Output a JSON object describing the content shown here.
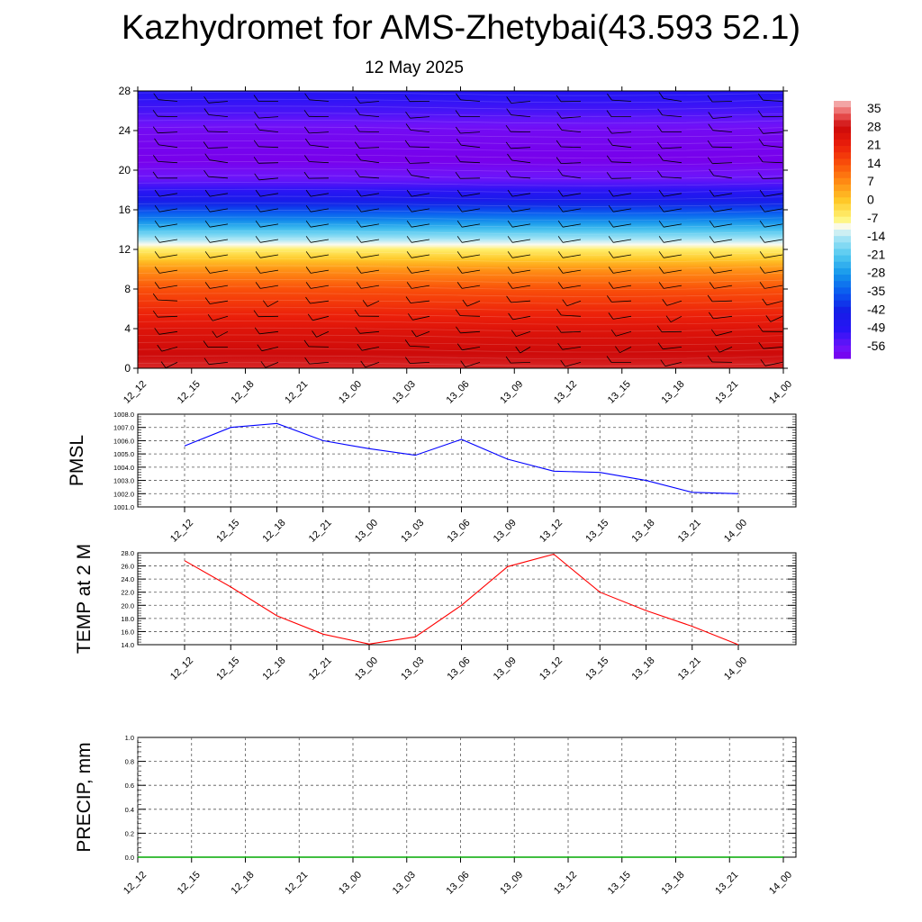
{
  "title": "Kazhydromet for AMS-Zhetybai(43.593 52.1)",
  "subtitle": "12 May 2025",
  "chart_data": [
    {
      "id": "cross_section",
      "type": "heatmap",
      "x_tick_labels": [
        "12_12",
        "12_15",
        "12_18",
        "12_21",
        "13_00",
        "13_03",
        "13_06",
        "13_09",
        "13_12",
        "13_15",
        "13_18",
        "13_21",
        "14_00"
      ],
      "y_ticks": [
        0,
        4,
        8,
        12,
        16,
        20,
        24,
        28
      ],
      "ylim": [
        0,
        28
      ],
      "colorbar": {
        "labels": [
          "35",
          "28",
          "21",
          "14",
          "7",
          "0",
          "-7",
          "-14",
          "-21",
          "-28",
          "-35",
          "-42",
          "-49",
          "-56"
        ],
        "range": [
          -60,
          38
        ]
      },
      "temperature_profile": [
        {
          "y": 0,
          "value": 30
        },
        {
          "y": 4,
          "value": 24
        },
        {
          "y": 8,
          "value": 14
        },
        {
          "y": 10,
          "value": 6
        },
        {
          "y": 12,
          "value": -6
        },
        {
          "y": 13,
          "value": -14
        },
        {
          "y": 15,
          "value": -30
        },
        {
          "y": 17,
          "value": -44
        },
        {
          "y": 19,
          "value": -55
        },
        {
          "y": 21,
          "value": -60
        },
        {
          "y": 24,
          "value": -58
        },
        {
          "y": 26,
          "value": -52
        },
        {
          "y": 28,
          "value": -48
        }
      ],
      "wind_barbs": true
    },
    {
      "id": "pmsl",
      "type": "line",
      "ylabel": "PMSL",
      "x_tick_labels": [
        "12_12",
        "12_15",
        "12_18",
        "12_21",
        "13_00",
        "13_03",
        "13_06",
        "13_09",
        "13_12",
        "13_15",
        "13_18",
        "13_21",
        "14_00"
      ],
      "y_tick_labels": [
        "1001.0",
        "1002.0",
        "1003.0",
        "1004.0",
        "1005.0",
        "1006.0",
        "1007.0",
        "1008.0"
      ],
      "ylim": [
        1001,
        1008
      ],
      "series": [
        {
          "color": "#0000ff",
          "values": [
            1005.6,
            1007.0,
            1007.3,
            1006.0,
            1005.4,
            1004.9,
            1006.1,
            1004.6,
            1003.7,
            1003.6,
            1003.0,
            1002.1,
            1002.0
          ]
        }
      ]
    },
    {
      "id": "temp2m",
      "type": "line",
      "ylabel": "TEMP at 2 M",
      "x_tick_labels": [
        "12_12",
        "12_15",
        "12_18",
        "12_21",
        "13_00",
        "13_03",
        "13_06",
        "13_09",
        "13_12",
        "13_15",
        "13_18",
        "13_21",
        "14_00"
      ],
      "y_tick_labels": [
        "14.0",
        "16.0",
        "18.0",
        "20.0",
        "22.0",
        "24.0",
        "26.0",
        "28.0"
      ],
      "ylim": [
        14,
        28
      ],
      "series": [
        {
          "color": "#ff0000",
          "values": [
            26.8,
            22.8,
            18.4,
            15.6,
            14.1,
            15.2,
            20.0,
            25.9,
            27.8,
            22.0,
            19.2,
            16.8,
            14.0
          ]
        }
      ]
    },
    {
      "id": "precip",
      "type": "line",
      "ylabel": "PRECIP, mm",
      "x_tick_labels": [
        "12_12",
        "12_15",
        "12_18",
        "12_21",
        "13_00",
        "13_03",
        "13_06",
        "13_09",
        "13_12",
        "13_15",
        "13_18",
        "13_21",
        "14_00"
      ],
      "y_tick_labels": [
        "0.0",
        "0.2",
        "0.4",
        "0.6",
        "0.8",
        "1.0"
      ],
      "ylim": [
        0,
        1
      ],
      "series": [
        {
          "color": "#00aa00",
          "values": [
            0,
            0,
            0,
            0,
            0,
            0,
            0,
            0,
            0,
            0,
            0,
            0,
            0
          ]
        }
      ]
    }
  ]
}
